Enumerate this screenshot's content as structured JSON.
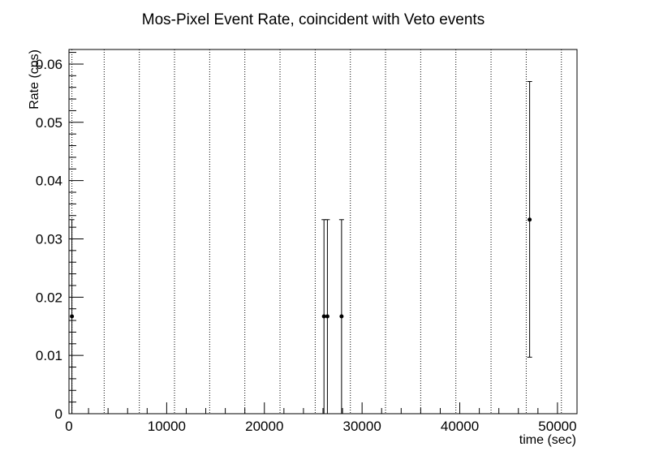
{
  "chart_data": {
    "type": "scatter",
    "title": "Mos-Pixel Event Rate, coincident with Veto events",
    "xlabel": "time (sec)",
    "ylabel": "Rate (cps)",
    "xlim": [
      0,
      52000
    ],
    "ylim": [
      0,
      0.0625
    ],
    "x_ticks": [
      0,
      10000,
      20000,
      30000,
      40000,
      50000
    ],
    "x_tick_labels": [
      "0",
      "10000",
      "20000",
      "30000",
      "40000",
      "50000"
    ],
    "y_ticks": [
      0,
      0.01,
      0.02,
      0.03,
      0.04,
      0.05,
      0.06
    ],
    "y_tick_labels": [
      "0",
      "0.01",
      "0.02",
      "0.03",
      "0.04",
      "0.05",
      "0.06"
    ],
    "vertical_dotted_lines": [
      300,
      3600,
      7200,
      10800,
      14400,
      18000,
      21600,
      25200,
      28800,
      32400,
      36000,
      39600,
      43200,
      46800,
      50400
    ],
    "points": [
      {
        "x": 300,
        "y": 0.0167,
        "y_low": 0,
        "y_high": 0.0333
      },
      {
        "x": 26100,
        "y": 0.0167,
        "y_low": 0,
        "y_high": 0.0333
      },
      {
        "x": 26450,
        "y": 0.0167,
        "y_low": 0,
        "y_high": 0.0333
      },
      {
        "x": 27900,
        "y": 0.0167,
        "y_low": 0,
        "y_high": 0.0333
      },
      {
        "x": 47150,
        "y": 0.0333,
        "y_low": 0.0097,
        "y_high": 0.057
      }
    ],
    "grid": false,
    "legend": "none"
  }
}
